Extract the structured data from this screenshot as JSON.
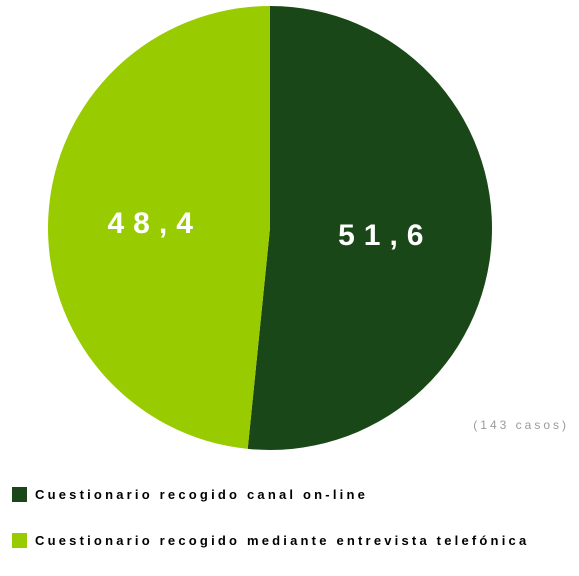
{
  "chart_data": {
    "type": "pie",
    "title": "",
    "categories": [
      "Cuestionario recogido canal on-line",
      "Cuestionario recogido mediante entrevista telefónica"
    ],
    "values": [
      51.6,
      48.4
    ],
    "labels": [
      "51,6",
      "48,4"
    ],
    "colors": [
      "#1a4718",
      "#99cc00"
    ],
    "start": "12 o'clock",
    "direction": "clockwise",
    "legend_position": "bottom-left",
    "note": "(143 casos)"
  }
}
